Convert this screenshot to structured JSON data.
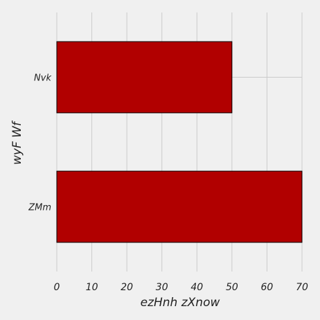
{
  "chart_data": {
    "type": "bar",
    "orientation": "horizontal",
    "categories": [
      "Nvk",
      "ZMm"
    ],
    "values": [
      50,
      70
    ],
    "xlabel": "ezHnh zXnow",
    "ylabel": "wyF Wf",
    "xlim": [
      0,
      70
    ],
    "xticks": [
      0,
      10,
      20,
      30,
      40,
      50,
      60,
      70
    ],
    "grid": true,
    "bar_color": "#b10000",
    "background": "#f0f0f0"
  }
}
